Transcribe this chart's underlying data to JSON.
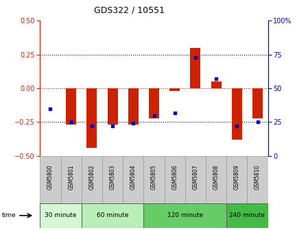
{
  "title": "GDS322 / 10551",
  "samples": [
    "GSM5800",
    "GSM5801",
    "GSM5802",
    "GSM5803",
    "GSM5804",
    "GSM5805",
    "GSM5806",
    "GSM5807",
    "GSM5808",
    "GSM5809",
    "GSM5810"
  ],
  "log_ratio": [
    0.0,
    -0.27,
    -0.44,
    -0.27,
    -0.27,
    -0.22,
    -0.02,
    0.3,
    0.05,
    -0.38,
    -0.22
  ],
  "percentile_rank": [
    35,
    25,
    22,
    22,
    24,
    30,
    32,
    73,
    57,
    22,
    25
  ],
  "groups": [
    {
      "label": "30 minute",
      "start": 0,
      "end": 2,
      "color": "#d4f7d4"
    },
    {
      "label": "60 minute",
      "start": 2,
      "end": 5,
      "color": "#b8eeb8"
    },
    {
      "label": "120 minute",
      "start": 5,
      "end": 9,
      "color": "#66cc66"
    },
    {
      "label": "240 minute",
      "start": 9,
      "end": 11,
      "color": "#44bb44"
    }
  ],
  "ylim_left": [
    -0.5,
    0.5
  ],
  "ylim_right": [
    0,
    100
  ],
  "yticks_left": [
    -0.5,
    -0.25,
    0,
    0.25,
    0.5
  ],
  "yticks_right": [
    0,
    25,
    50,
    75,
    100
  ],
  "bar_color": "#cc2200",
  "dot_color": "#0000bb",
  "bar_width": 0.5,
  "background_color": "#ffffff",
  "label_bg_color": "#cccccc"
}
